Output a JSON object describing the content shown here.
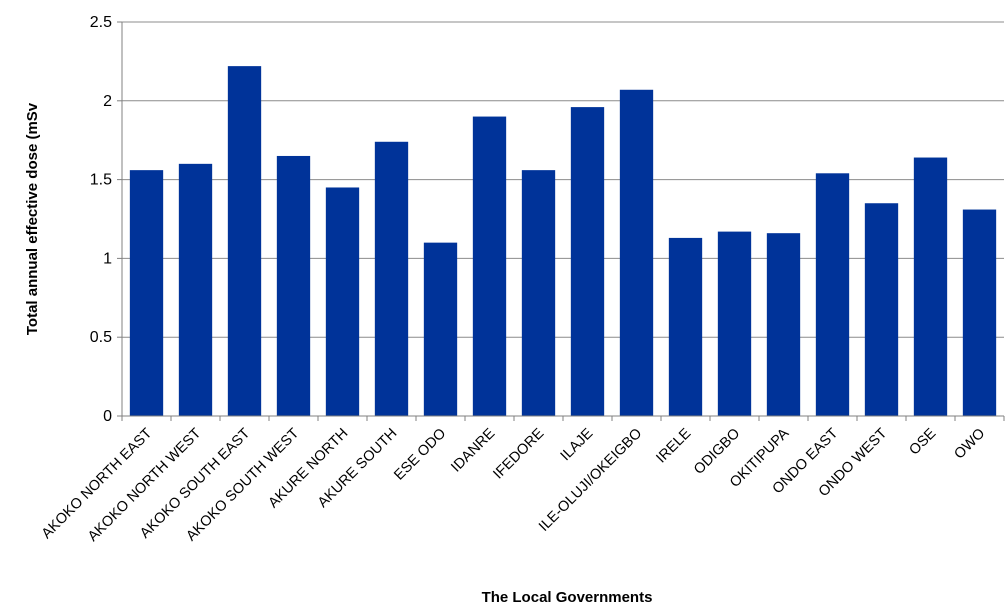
{
  "chart_data": {
    "type": "bar",
    "xlabel": "The Local Governments",
    "ylabel": "Total annual effective dose (mSv",
    "ylim": [
      0,
      2.5
    ],
    "yticks": [
      "0",
      "0.5",
      "1",
      "1.5",
      "2",
      "2.5"
    ],
    "grid": true,
    "legend": "none",
    "bar_color": "#003399",
    "categories": [
      "AKOKO NORTH EAST",
      "AKOKO NORTH WEST",
      "AKOKO SOUTH EAST",
      "AKOKO SOUTH WEST",
      "AKURE NORTH",
      "AKURE SOUTH",
      "ESE ODO",
      "IDANRE",
      "IFEDORE",
      "ILAJE",
      "ILE-OLUJI/OKEIGBO",
      "IRELE",
      "ODIGBO",
      "OKITIPUPA",
      "ONDO EAST",
      "ONDO WEST",
      "OSE",
      "OWO"
    ],
    "values": [
      1.56,
      1.6,
      2.22,
      1.65,
      1.45,
      1.74,
      1.1,
      1.9,
      1.56,
      1.96,
      2.07,
      1.13,
      1.17,
      1.16,
      1.54,
      1.35,
      1.64,
      1.31
    ]
  }
}
